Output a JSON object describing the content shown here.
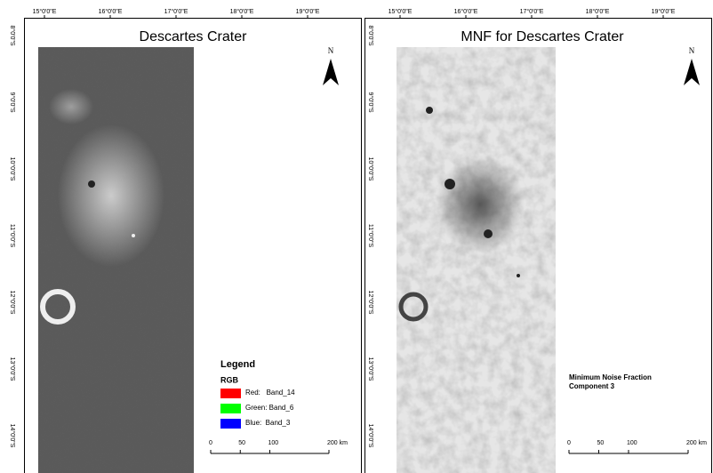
{
  "panels": [
    {
      "title": "Descartes Crater",
      "lon_labels": [
        "15°0'0\"E",
        "16°0'0\"E",
        "17°0'0\"E",
        "18°0'0\"E",
        "19°0'0\"E"
      ],
      "lat_labels": [
        "8°0'0\"S",
        "9°0'0\"S",
        "10°0'0\"S",
        "11°0'0\"S",
        "12°0'0\"S",
        "13°0'0\"S",
        "14°0'0\"S"
      ],
      "north": "N",
      "legend": {
        "title": "Legend",
        "subtitle": "RGB",
        "items": [
          {
            "label": "Red:   Band_14",
            "color": "#ff0000"
          },
          {
            "label": "Green: Band_6",
            "color": "#00ff00"
          },
          {
            "label": "Blue:  Band_3",
            "color": "#0000ff"
          }
        ]
      },
      "scale": {
        "ticks": [
          0,
          50,
          100,
          {
            "value": 200,
            "label": "200 km"
          }
        ]
      }
    },
    {
      "title": "MNF for Descartes Crater",
      "lon_labels": [
        "15°0'0\"E",
        "16°0'0\"E",
        "17°0'0\"E",
        "18°0'0\"E",
        "19°0'0\"E"
      ],
      "lat_labels": [
        "8°0'0\"S",
        "9°0'0\"S",
        "10°0'0\"S",
        "11°0'0\"S",
        "12°0'0\"S",
        "13°0'0\"S",
        "14°0'0\"S"
      ],
      "north": "N",
      "legend": {
        "lines": [
          "Minimum Noise Fraction",
          "Component 3"
        ]
      },
      "scale": {
        "ticks": [
          0,
          50,
          100,
          {
            "value": 200,
            "label": "200 km"
          }
        ]
      }
    }
  ]
}
